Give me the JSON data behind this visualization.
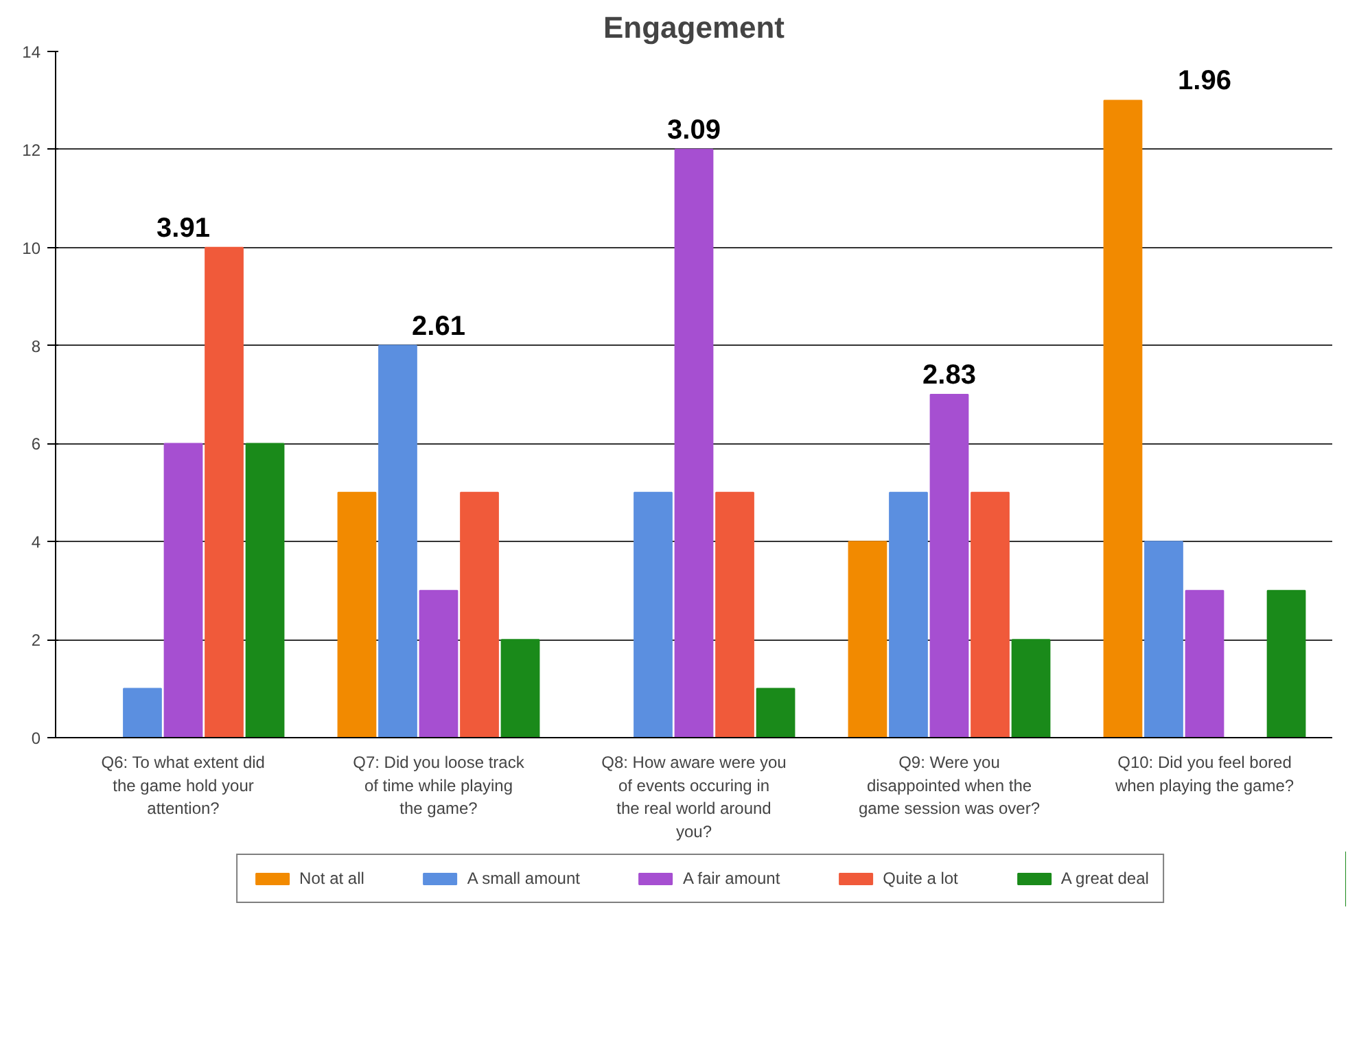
{
  "chart_data": {
    "type": "bar",
    "title": "Engagement",
    "categories": [
      "Q6: To what extent did the game hold your attention?",
      "Q7: Did you loose track of time while playing the game?",
      "Q8: How aware were you of events occuring in the real world around you?",
      "Q9: Were you disappointed when the game session was over?",
      "Q10: Did you feel bored when playing the game?"
    ],
    "series": [
      {
        "name": "Not at all",
        "color": "#f28a00",
        "values": [
          0,
          5,
          0,
          4,
          13
        ]
      },
      {
        "name": "A small amount",
        "color": "#5b8fe0",
        "values": [
          1,
          8,
          5,
          5,
          4
        ]
      },
      {
        "name": "A fair amount",
        "color": "#a64fd1",
        "values": [
          6,
          3,
          12,
          7,
          3
        ]
      },
      {
        "name": "Quite a lot",
        "color": "#f05a3a",
        "values": [
          10,
          5,
          5,
          5,
          0
        ]
      },
      {
        "name": "A great deal",
        "color": "#1a8a1a",
        "values": [
          6,
          2,
          1,
          2,
          3
        ]
      }
    ],
    "annotations": [
      "3.91",
      "2.61",
      "3.09",
      "2.83",
      "1.96"
    ],
    "ylim": [
      0,
      14
    ],
    "yticks": [
      0,
      2,
      4,
      6,
      8,
      10,
      12,
      14
    ],
    "grid": "y",
    "legend": "bottom"
  }
}
